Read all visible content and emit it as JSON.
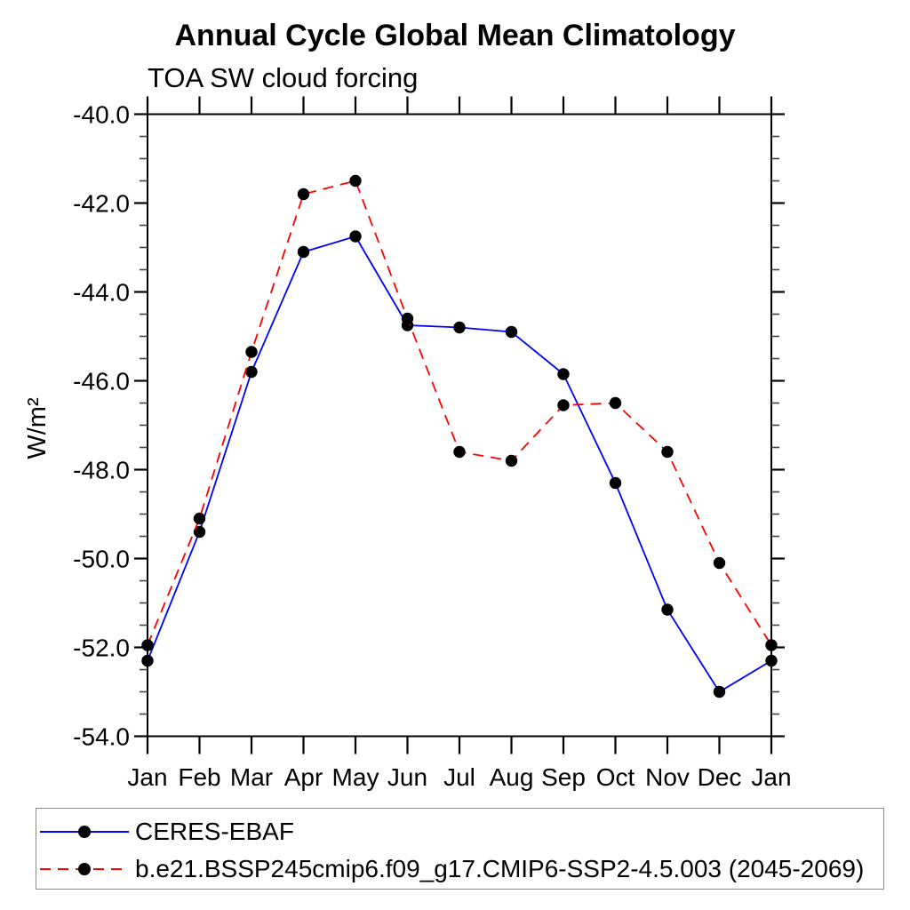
{
  "chart_data": {
    "type": "line",
    "title": "Annual Cycle Global Mean Climatology",
    "subtitle": "TOA SW cloud forcing",
    "xlabel": "",
    "ylabel": "W/m²",
    "categories": [
      "Jan",
      "Feb",
      "Mar",
      "Apr",
      "May",
      "Jun",
      "Jul",
      "Aug",
      "Sep",
      "Oct",
      "Nov",
      "Dec",
      "Jan"
    ],
    "series": [
      {
        "name": "CERES-EBAF",
        "color": "#0000ff",
        "line_style": "solid",
        "marker": "filled-circle",
        "marker_color": "#000000",
        "values": [
          -52.3,
          -49.4,
          -45.8,
          -43.1,
          -42.75,
          -44.75,
          -44.8,
          -44.9,
          -45.85,
          -48.3,
          -51.15,
          -53.0,
          -52.3
        ]
      },
      {
        "name": "b.e21.BSSP245cmip6.f09_g17.CMIP6-SSP2-4.5.003 (2045-2069)",
        "color": "#ff0000",
        "line_style": "dashed",
        "marker": "filled-circle",
        "marker_color": "#000000",
        "values": [
          -51.95,
          -49.1,
          -45.35,
          -41.8,
          -41.5,
          -44.6,
          -47.6,
          -47.8,
          -46.55,
          -46.5,
          -47.6,
          -50.1,
          -51.95
        ]
      }
    ],
    "ylim": [
      -54.0,
      -40.0
    ],
    "ytick_values": [
      -40,
      -42,
      -44,
      -46,
      -48,
      -50,
      -52,
      -54
    ],
    "ytick_labels": [
      "-40.0",
      "-42.0",
      "-44.0",
      "-46.0",
      "-48.0",
      "-50.0",
      "-52.0",
      "-54.0"
    ],
    "ytick_minor_step": 0.5,
    "axis_color": "#000000",
    "grid": false,
    "legend_position": "bottom-left"
  }
}
